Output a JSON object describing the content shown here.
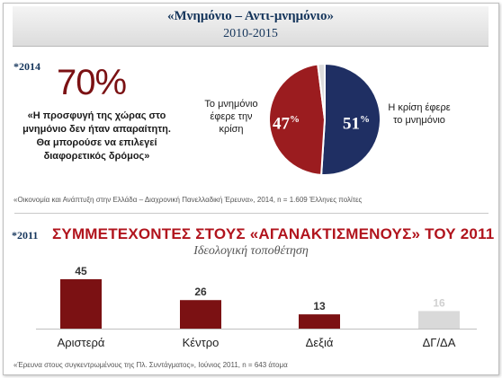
{
  "header": {
    "title": "«Μνημόνιο – Αντι-μνημόνιο»",
    "subtitle": "2010-2015"
  },
  "section_2014": {
    "year_label": "*2014",
    "big_percent": "70%",
    "quote": "«Η προσφυγή της χώρας στο μνημόνιο δεν ήταν απαραίτητη. Θα μπορούσε να επιλεγεί διαφορετικός δρόμος»",
    "source": "«Οικονομία και Ανάπτυξη στην Ελλάδα – Διαχρονική Πανελλαδική Έρευνα», 2014, n = 1.609 Έλληνες πολίτες"
  },
  "chart_data": [
    {
      "type": "pie",
      "slices": [
        {
          "label": "Η κρίση έφερε το μνημόνιο",
          "value": 51,
          "display": "51",
          "color": "#1f2f63"
        },
        {
          "label": "Το μνημόνιο έφερε την κρίση",
          "value": 47,
          "display": "47",
          "color": "#9b1c1f"
        },
        {
          "label": "",
          "value": 2,
          "display": "",
          "color": "#dcdcdc"
        }
      ],
      "percent_sign": "%"
    },
    {
      "type": "bar",
      "title": "ΣΥΜΜΕΤΕΧΟΝΤΕΣ ΣΤΟΥΣ «ΑΓΑΝΑΚΤΙΣΜΕΝΟΥΣ» ΤΟΥ 2011",
      "subtitle": "Ιδεολογική τοποθέτηση",
      "categories": [
        "Αριστερά",
        "Κέντρο",
        "Δεξιά",
        "ΔΓ/ΔΑ"
      ],
      "values": [
        45,
        26,
        13,
        16
      ],
      "colors": [
        "#7b1113",
        "#7b1113",
        "#7b1113",
        "#d9d9d9"
      ],
      "label_colors": [
        "#333333",
        "#333333",
        "#333333",
        "#d0d0d0"
      ],
      "ylim": [
        0,
        45
      ]
    }
  ],
  "section_2011": {
    "year_label": "*2011",
    "source": "«Έρευνα στους συγκεντρωμένους της Πλ. Συντάγματος», Ιούνιος 2011, n = 643 άτομα"
  }
}
